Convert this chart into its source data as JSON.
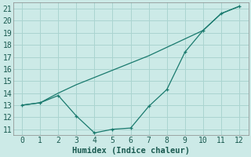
{
  "title": "",
  "xlabel": "Humidex (Indice chaleur)",
  "ylabel": "",
  "background_color": "#cceae7",
  "grid_color": "#aad4d0",
  "line_color": "#1a7a6e",
  "xlim": [
    -0.5,
    12.5
  ],
  "ylim": [
    10.5,
    21.5
  ],
  "xticks": [
    0,
    1,
    2,
    3,
    4,
    5,
    6,
    7,
    8,
    9,
    10,
    11,
    12
  ],
  "yticks": [
    11,
    12,
    13,
    14,
    15,
    16,
    17,
    18,
    19,
    20,
    21
  ],
  "line1_x": [
    0,
    1,
    2,
    3,
    4,
    5,
    6,
    7,
    8,
    9,
    10,
    11,
    12
  ],
  "line1_y": [
    13.0,
    13.2,
    13.8,
    12.1,
    10.7,
    11.0,
    11.1,
    12.9,
    14.3,
    17.4,
    19.2,
    20.6,
    21.2
  ],
  "line2_x": [
    0,
    1,
    2,
    3,
    4,
    5,
    6,
    7,
    8,
    9,
    10,
    11,
    12
  ],
  "line2_y": [
    13.0,
    13.2,
    14.0,
    14.7,
    15.3,
    15.9,
    16.5,
    17.1,
    17.8,
    18.5,
    19.2,
    20.6,
    21.2
  ],
  "font_size": 7.5,
  "label_color": "#1a5a50"
}
